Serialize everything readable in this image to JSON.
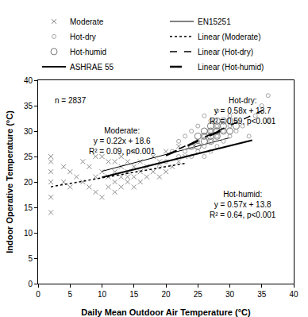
{
  "chart_data": {
    "type": "scatter",
    "x_label": "Daily Mean Outdoor Air Temperature (°C)",
    "y_label": "Indoor Operative Temperature (°C)",
    "xlim": [
      0,
      40
    ],
    "xticks": [
      0,
      5,
      10,
      15,
      20,
      25,
      30,
      35,
      40
    ],
    "ylim": [
      0,
      40
    ],
    "yticks": [
      0,
      5,
      10,
      15,
      20,
      25,
      30,
      35,
      40
    ],
    "grid": false,
    "legend": "top",
    "series": [
      {
        "name": "Moderate",
        "type": "scatter",
        "marker": "x",
        "color": "#8c8c8c",
        "x": [
          2,
          2,
          2,
          2,
          2,
          2,
          4,
          4,
          5,
          5,
          6,
          7,
          7,
          8,
          8,
          9,
          9,
          9,
          10,
          10,
          10,
          11,
          11,
          11,
          12,
          12,
          12,
          12,
          13,
          13,
          13,
          13,
          14,
          14,
          14,
          14,
          15,
          15,
          15,
          15,
          16,
          16,
          16,
          17,
          17,
          18,
          18,
          19,
          19,
          20,
          20,
          21,
          22,
          22,
          23
        ],
        "values": [
          14,
          17,
          20,
          22,
          24,
          25,
          20,
          23,
          19,
          22,
          21,
          20,
          24,
          19,
          23,
          18,
          21,
          25,
          17,
          22,
          25,
          19,
          21,
          24,
          18,
          20,
          22,
          24,
          19,
          21,
          23,
          25,
          20,
          21,
          22,
          24,
          19,
          21,
          23,
          26,
          20,
          22,
          24,
          21,
          23,
          22,
          25,
          21,
          24,
          22,
          26,
          23,
          24,
          27,
          25
        ]
      },
      {
        "name": "EN15251",
        "type": "line",
        "line_style": "thin",
        "color": "#000000",
        "x": [
          10,
          30
        ],
        "values": [
          22.1,
          28.7
        ]
      },
      {
        "name": "Hot-dry",
        "type": "scatter",
        "marker": "circle",
        "color": "#a6a6a6",
        "x": [
          19,
          20,
          21,
          22,
          22,
          23,
          23,
          24,
          24,
          24,
          25,
          25,
          25,
          26,
          26,
          26,
          26,
          27,
          27,
          27,
          27,
          28,
          28,
          28,
          28,
          29,
          29,
          29,
          30,
          30,
          30,
          31,
          31,
          32,
          33,
          34,
          35,
          36,
          36
        ],
        "values": [
          23,
          24,
          26,
          25,
          28,
          26,
          29,
          25,
          27,
          30,
          26,
          28,
          31,
          25,
          27,
          29,
          33,
          26,
          28,
          30,
          32,
          27,
          29,
          31,
          34,
          28,
          30,
          32,
          29,
          31,
          33,
          30,
          32,
          31,
          29,
          33,
          35,
          32,
          37
        ]
      },
      {
        "name": "Linear (Moderate)",
        "type": "line",
        "line_style": "dotted",
        "color": "#000000",
        "x": [
          2,
          23
        ],
        "values": [
          19.04,
          23.66
        ]
      },
      {
        "name": "Hot-humid",
        "type": "scatter",
        "marker": "large-circle",
        "color": "#7a7a7a",
        "x": [
          24,
          25,
          25,
          26,
          26,
          26,
          27,
          27,
          27,
          27,
          28,
          28,
          28,
          28,
          29,
          29,
          29,
          30,
          30,
          31
        ],
        "values": [
          27,
          27,
          29,
          28,
          29,
          30,
          28,
          29,
          30,
          31,
          29,
          30,
          31,
          32,
          30,
          31,
          32,
          30,
          32,
          31
        ]
      },
      {
        "name": "Linear (Hot-dry)",
        "type": "line",
        "line_style": "dashed",
        "color": "#000000",
        "x": [
          20,
          36
        ],
        "values": [
          25.3,
          34.58
        ]
      },
      {
        "name": "ASHRAE 55",
        "type": "line",
        "line_style": "solid",
        "color": "#000000",
        "x": [
          10,
          33.5
        ],
        "values": [
          20.9,
          28.2
        ]
      },
      {
        "name": "Linear (Hot-humid)",
        "type": "line",
        "line_style": "longdash",
        "color": "#000000",
        "x": [
          20,
          30
        ],
        "values": [
          25.2,
          30.9
        ]
      }
    ],
    "annotations": [
      {
        "lines": [
          "n = 2837"
        ]
      },
      {
        "lines": [
          "Moderate:",
          "y = 0.22x + 18.6",
          "R² = 0.09, p<0.001"
        ]
      },
      {
        "lines": [
          "Hot-dry:",
          "y = 0.58x + 13.7",
          "R² = 0.59, p<0.001"
        ]
      },
      {
        "lines": [
          "Hot-humid:",
          "y = 0.57x + 13.8",
          "R² = 0.64, p<0.001"
        ]
      }
    ]
  }
}
